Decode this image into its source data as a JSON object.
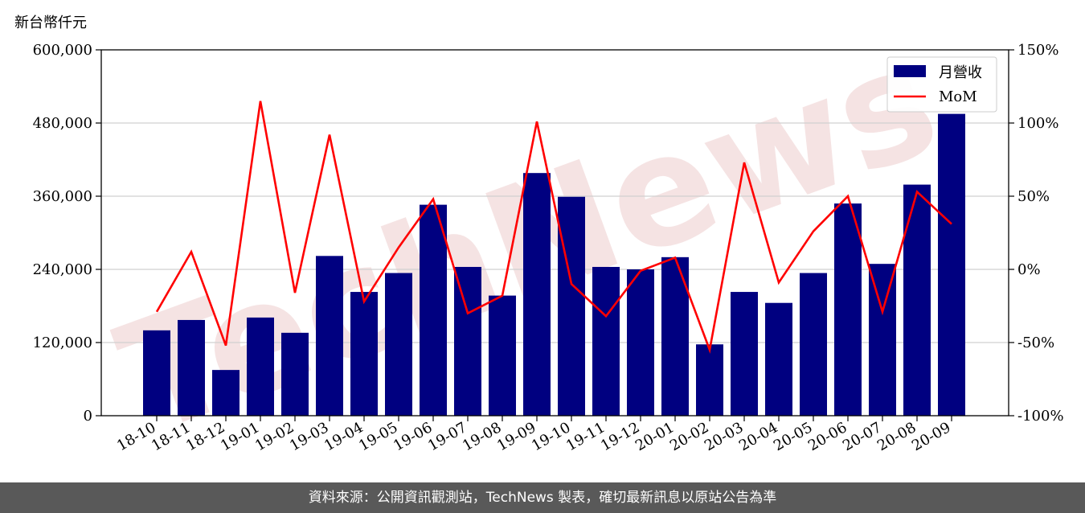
{
  "watermark": "TechNews",
  "footer": {
    "source_text": "資料來源：公開資訊觀測站，TechNews 製表，確切最新訊息以原站公告為準"
  },
  "colors": {
    "bar": "#000080",
    "line": "#ff0000",
    "grid": "#d0d0d0",
    "footer_bg": "#595959"
  },
  "chart_data": {
    "type": "bar",
    "unit_label": "新台幣仟元",
    "categories": [
      "18-10",
      "18-11",
      "18-12",
      "19-01",
      "19-02",
      "19-03",
      "19-04",
      "19-05",
      "19-06",
      "19-07",
      "19-08",
      "19-09",
      "19-10",
      "19-11",
      "19-12",
      "20-01",
      "20-02",
      "20-03",
      "20-04",
      "20-05",
      "20-06",
      "20-07",
      "20-08",
      "20-09"
    ],
    "series": [
      {
        "name": "月營收",
        "type": "bar",
        "axis": "left",
        "values": [
          140000,
          157000,
          75000,
          161000,
          136000,
          262000,
          203000,
          234000,
          346000,
          244000,
          197000,
          398000,
          359000,
          244000,
          240000,
          260000,
          117000,
          203000,
          185000,
          234000,
          348000,
          249000,
          379000,
          495000
        ]
      },
      {
        "name": "MoM",
        "type": "line",
        "axis": "right",
        "values": [
          -29,
          12,
          -52,
          115,
          -16,
          92,
          -22,
          15,
          48,
          -30,
          -18,
          101,
          -10,
          -32,
          -1,
          8,
          -55,
          73,
          -9,
          26,
          50,
          -29,
          53,
          31
        ]
      }
    ],
    "y_left": {
      "ylim": [
        0,
        600000
      ],
      "ticks": [
        0,
        120000,
        240000,
        360000,
        480000,
        600000
      ],
      "tick_labels": [
        "0",
        "120,000",
        "240,000",
        "360,000",
        "480,000",
        "600,000"
      ]
    },
    "y_right": {
      "ylim": [
        -100,
        150
      ],
      "ticks": [
        -100,
        -50,
        0,
        50,
        100,
        150
      ],
      "tick_labels": [
        "-100%",
        "-50%",
        "0%",
        "50%",
        "100%",
        "150%"
      ]
    },
    "grid": true,
    "legend": {
      "position": "top-right"
    }
  }
}
